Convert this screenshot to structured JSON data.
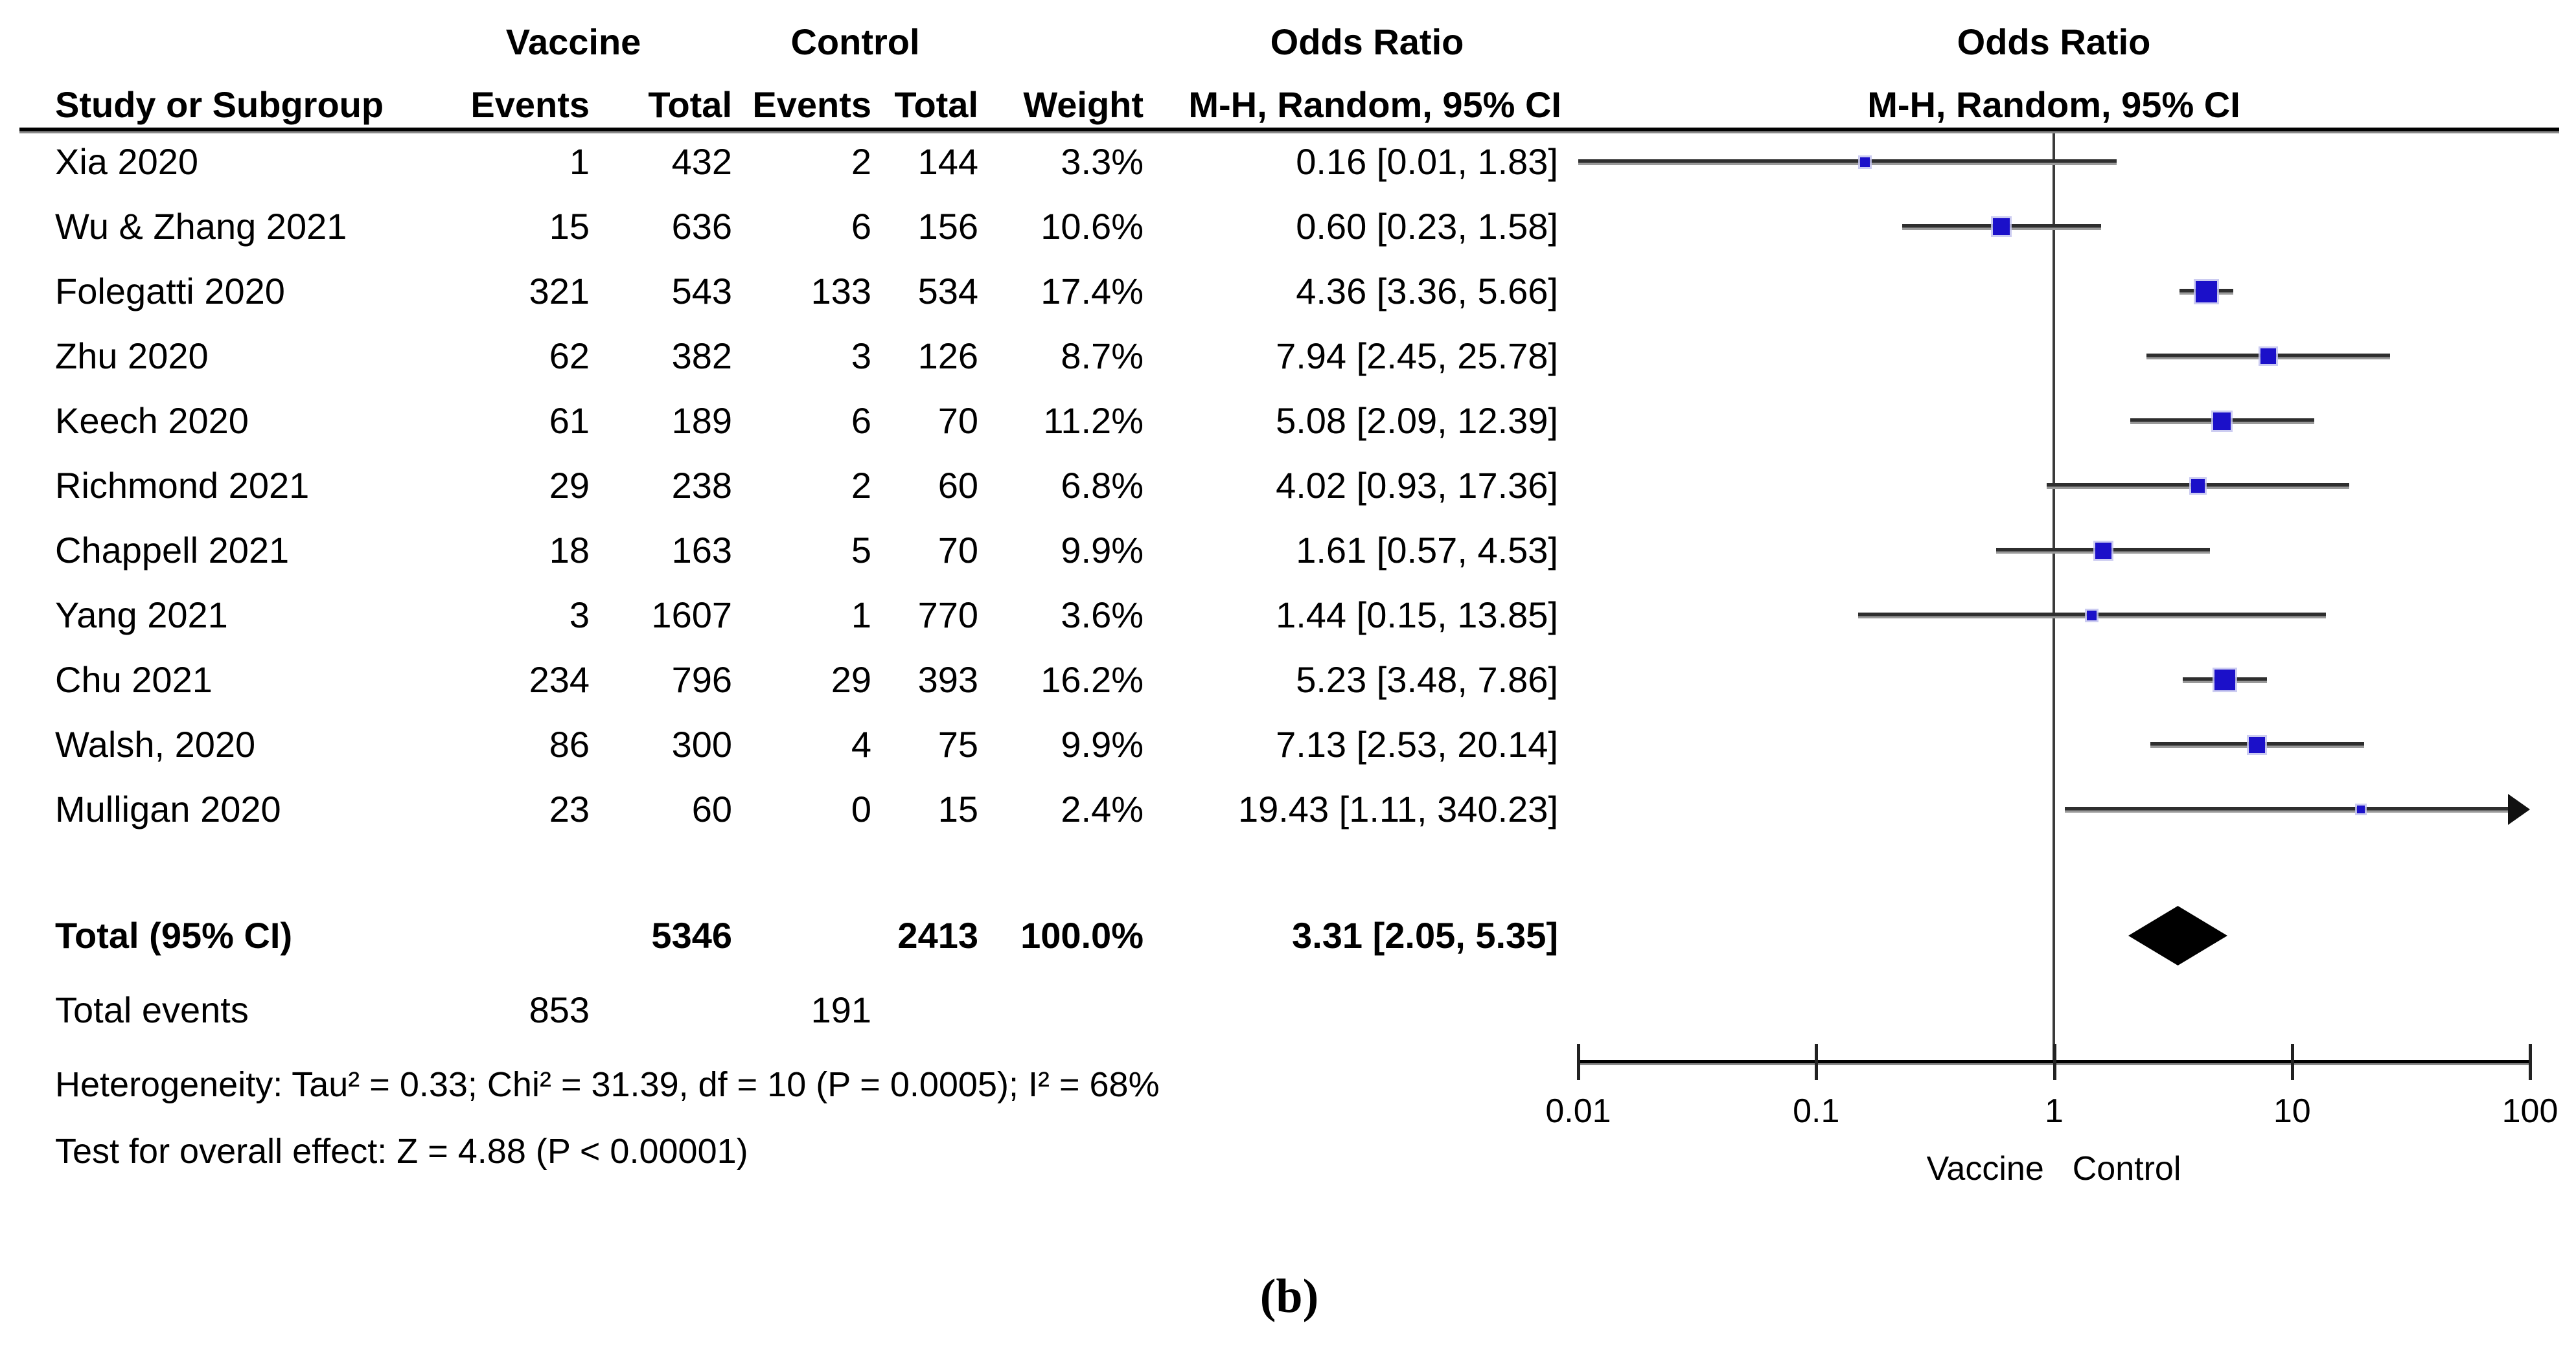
{
  "header": {
    "group_vaccine": "Vaccine",
    "group_control": "Control",
    "col_study": "Study or Subgroup",
    "col_events": "Events",
    "col_total": "Total",
    "col_weight": "Weight",
    "or_title": "Odds Ratio",
    "or_method": "M-H, Random, 95% CI"
  },
  "chart_data": {
    "type": "forest",
    "x_axis": {
      "scale": "log",
      "ticks": [
        0.01,
        0.1,
        1,
        10,
        100
      ],
      "tick_labels": [
        "0.01",
        "0.1",
        "1",
        "10",
        "100"
      ],
      "favours_left": "Vaccine",
      "favours_right": "Control"
    },
    "studies": [
      {
        "name": "Xia 2020",
        "v_events": 1,
        "v_total": 432,
        "c_events": 2,
        "c_total": 144,
        "weight": 3.3,
        "weight_label": "3.3%",
        "or": 0.16,
        "ci": [
          0.01,
          1.83
        ],
        "or_label": "0.16 [0.01, 1.83]"
      },
      {
        "name": "Wu & Zhang 2021",
        "v_events": 15,
        "v_total": 636,
        "c_events": 6,
        "c_total": 156,
        "weight": 10.6,
        "weight_label": "10.6%",
        "or": 0.6,
        "ci": [
          0.23,
          1.58
        ],
        "or_label": "0.60 [0.23, 1.58]"
      },
      {
        "name": "Folegatti 2020",
        "v_events": 321,
        "v_total": 543,
        "c_events": 133,
        "c_total": 534,
        "weight": 17.4,
        "weight_label": "17.4%",
        "or": 4.36,
        "ci": [
          3.36,
          5.66
        ],
        "or_label": "4.36 [3.36, 5.66]"
      },
      {
        "name": "Zhu 2020",
        "v_events": 62,
        "v_total": 382,
        "c_events": 3,
        "c_total": 126,
        "weight": 8.7,
        "weight_label": "8.7%",
        "or": 7.94,
        "ci": [
          2.45,
          25.78
        ],
        "or_label": "7.94 [2.45, 25.78]"
      },
      {
        "name": "Keech 2020",
        "v_events": 61,
        "v_total": 189,
        "c_events": 6,
        "c_total": 70,
        "weight": 11.2,
        "weight_label": "11.2%",
        "or": 5.08,
        "ci": [
          2.09,
          12.39
        ],
        "or_label": "5.08 [2.09, 12.39]"
      },
      {
        "name": "Richmond 2021",
        "v_events": 29,
        "v_total": 238,
        "c_events": 2,
        "c_total": 60,
        "weight": 6.8,
        "weight_label": "6.8%",
        "or": 4.02,
        "ci": [
          0.93,
          17.36
        ],
        "or_label": "4.02 [0.93, 17.36]"
      },
      {
        "name": "Chappell 2021",
        "v_events": 18,
        "v_total": 163,
        "c_events": 5,
        "c_total": 70,
        "weight": 9.9,
        "weight_label": "9.9%",
        "or": 1.61,
        "ci": [
          0.57,
          4.53
        ],
        "or_label": "1.61 [0.57, 4.53]"
      },
      {
        "name": "Yang 2021",
        "v_events": 3,
        "v_total": 1607,
        "c_events": 1,
        "c_total": 770,
        "weight": 3.6,
        "weight_label": "3.6%",
        "or": 1.44,
        "ci": [
          0.15,
          13.85
        ],
        "or_label": "1.44 [0.15, 13.85]"
      },
      {
        "name": "Chu 2021",
        "v_events": 234,
        "v_total": 796,
        "c_events": 29,
        "c_total": 393,
        "weight": 16.2,
        "weight_label": "16.2%",
        "or": 5.23,
        "ci": [
          3.48,
          7.86
        ],
        "or_label": "5.23 [3.48, 7.86]"
      },
      {
        "name": "Walsh, 2020",
        "v_events": 86,
        "v_total": 300,
        "c_events": 4,
        "c_total": 75,
        "weight": 9.9,
        "weight_label": "9.9%",
        "or": 7.13,
        "ci": [
          2.53,
          20.14
        ],
        "or_label": "7.13 [2.53, 20.14]"
      },
      {
        "name": "Mulligan 2020",
        "v_events": 23,
        "v_total": 60,
        "c_events": 0,
        "c_total": 15,
        "weight": 2.4,
        "weight_label": "2.4%",
        "or": 19.43,
        "ci": [
          1.11,
          340.23
        ],
        "or_label": "19.43 [1.11, 340.23]"
      }
    ],
    "total": {
      "label": "Total (95% CI)",
      "v_total": 5346,
      "c_total": 2413,
      "weight_label": "100.0%",
      "or": 3.31,
      "ci": [
        2.05,
        5.35
      ],
      "or_label": "3.31 [2.05, 5.35]"
    },
    "total_events": {
      "label": "Total events",
      "v_events": 853,
      "c_events": 191
    },
    "heterogeneity": "Heterogeneity: Tau² = 0.33; Chi² = 31.39, df = 10 (P = 0.0005); I² = 68%",
    "overall_effect": "Test for overall effect: Z = 4.88 (P < 0.00001)",
    "colors": {
      "marker": "#1b10c9",
      "ci_line": "#2e2e2e",
      "diamond": "#000000",
      "axis": "#000000"
    }
  },
  "caption": "(b)"
}
